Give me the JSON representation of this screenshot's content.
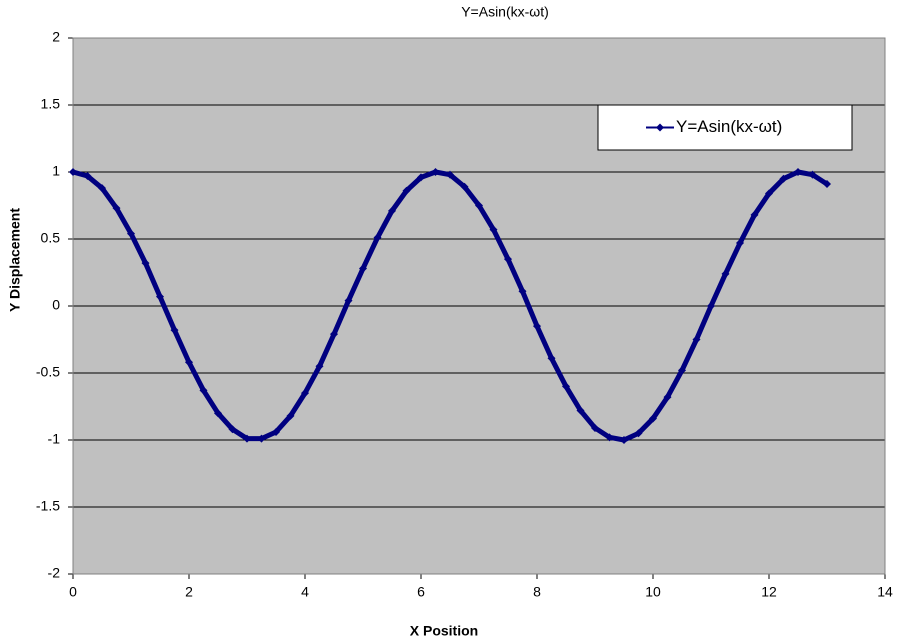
{
  "chart_data": {
    "type": "line",
    "title": "Y=Asin(kx-ωt)",
    "x_label": "X Position",
    "y_label": "Y Displacement",
    "x": [
      0,
      0.25,
      0.5,
      0.75,
      1,
      1.25,
      1.5,
      1.75,
      2,
      2.25,
      2.5,
      2.75,
      3,
      3.25,
      3.5,
      3.75,
      4,
      4.25,
      4.5,
      4.75,
      5,
      5.25,
      5.5,
      5.75,
      6,
      6.25,
      6.5,
      6.75,
      7,
      7.25,
      7.5,
      7.75,
      8,
      8.25,
      8.5,
      8.75,
      9,
      9.25,
      9.5,
      9.75,
      10,
      10.25,
      10.5,
      10.75,
      11,
      11.25,
      11.5,
      11.75,
      12,
      12.25,
      12.5,
      12.75,
      13
    ],
    "series": [
      {
        "name": "Y=Asin(kx-ωt)",
        "color": "#000080",
        "values": [
          1,
          0.97,
          0.88,
          0.73,
          0.54,
          0.32,
          0.07,
          -0.18,
          -0.42,
          -0.63,
          -0.8,
          -0.92,
          -0.99,
          -0.99,
          -0.94,
          -0.82,
          -0.65,
          -0.45,
          -0.21,
          0.04,
          0.28,
          0.51,
          0.71,
          0.86,
          0.96,
          1,
          0.98,
          0.89,
          0.75,
          0.57,
          0.35,
          0.11,
          -0.15,
          -0.39,
          -0.6,
          -0.78,
          -0.91,
          -0.98,
          -1,
          -0.95,
          -0.84,
          -0.68,
          -0.48,
          -0.25,
          0,
          0.24,
          0.47,
          0.68,
          0.84,
          0.95,
          1,
          0.98,
          0.91
        ]
      }
    ],
    "xlim": [
      0,
      14
    ],
    "xticks": [
      0,
      2,
      4,
      6,
      8,
      10,
      12,
      14
    ],
    "ylim": [
      -2,
      2
    ],
    "yticks": [
      -2,
      -1.5,
      -1,
      -0.5,
      0,
      0.5,
      1,
      1.5,
      2
    ],
    "grid": true,
    "legend": "upper right"
  }
}
